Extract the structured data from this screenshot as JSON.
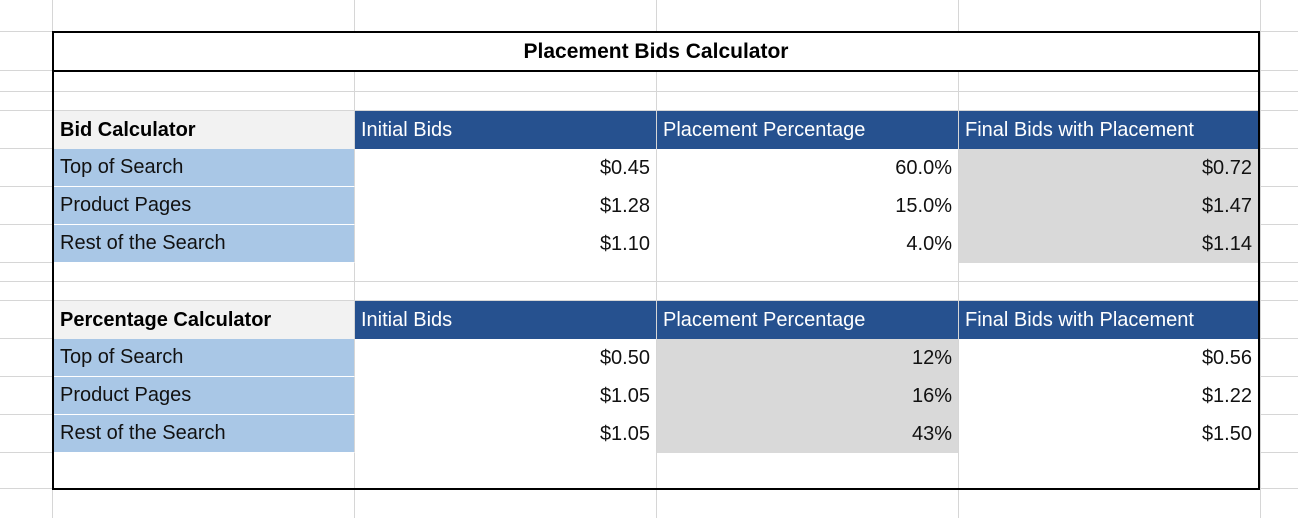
{
  "title": "Placement Bids Calculator",
  "colors": {
    "header_bg": "#26518f",
    "label_bg": "#a9c7e6",
    "computed_bg": "#d9d9d9",
    "section_bg": "#f2f2f2"
  },
  "bid_calculator": {
    "section_label": "Bid Calculator",
    "headers": [
      "Initial Bids",
      "Placement Percentage",
      "Final Bids with Placement"
    ],
    "rows": [
      {
        "label": "Top of Search",
        "initial": "$0.45",
        "percentage": "60.0%",
        "final": "$0.72"
      },
      {
        "label": "Product Pages",
        "initial": "$1.28",
        "percentage": "15.0%",
        "final": "$1.47"
      },
      {
        "label": "Rest of the Search",
        "initial": "$1.10",
        "percentage": "4.0%",
        "final": "$1.14"
      }
    ]
  },
  "percentage_calculator": {
    "section_label": "Percentage Calculator",
    "headers": [
      "Initial Bids",
      "Placement Percentage",
      "Final Bids with Placement"
    ],
    "rows": [
      {
        "label": "Top of Search",
        "initial": "$0.50",
        "percentage": "12%",
        "final": "$0.56"
      },
      {
        "label": "Product Pages",
        "initial": "$1.05",
        "percentage": "16%",
        "final": "$1.22"
      },
      {
        "label": "Rest of the Search",
        "initial": "$1.05",
        "percentage": "43%",
        "final": "$1.50"
      }
    ]
  }
}
